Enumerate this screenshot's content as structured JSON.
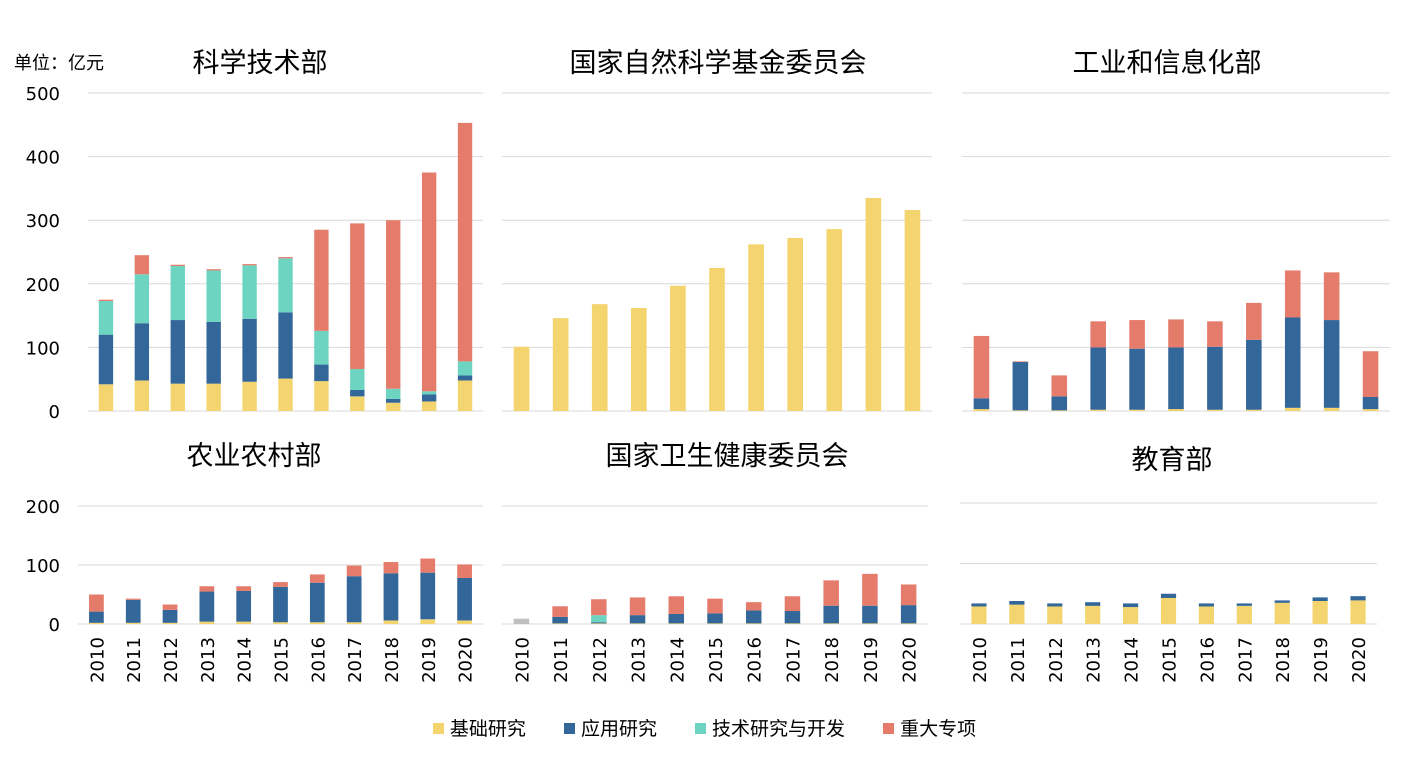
{
  "unit_label": "单位：亿元",
  "colors": {
    "basic": "#F3D46E",
    "applied": "#336699",
    "tech_dev": "#6CD4C0",
    "major": "#E57B6B",
    "gray": "#BFBFBF",
    "grid": "#D9D9D9"
  },
  "legend": [
    {
      "name": "基础研究",
      "color": "#F3D46E"
    },
    {
      "name": "应用研究",
      "color": "#336699"
    },
    {
      "name": "技术研究与开发",
      "color": "#6CD4C0"
    },
    {
      "name": "重大专项",
      "color": "#E57B6B"
    }
  ],
  "chart_data": [
    {
      "type": "bar",
      "stacked": true,
      "title": "科学技术部",
      "categories": [
        "2010",
        "2011",
        "2012",
        "2013",
        "2014",
        "2015",
        "2016",
        "2017",
        "2018",
        "2019",
        "2020"
      ],
      "ylim": [
        0,
        500
      ],
      "yticks": [
        0,
        100,
        200,
        300,
        400,
        500
      ],
      "series": [
        {
          "name": "基础研究",
          "values": [
            42,
            48,
            43,
            43,
            46,
            51,
            47,
            23,
            13,
            15,
            48
          ]
        },
        {
          "name": "应用研究",
          "values": [
            78,
            90,
            100,
            97,
            99,
            104,
            26,
            10,
            6,
            11,
            8
          ]
        },
        {
          "name": "技术研究与开发",
          "values": [
            53,
            77,
            85,
            81,
            84,
            85,
            53,
            33,
            16,
            5,
            22
          ]
        },
        {
          "name": "重大专项",
          "values": [
            2,
            30,
            2,
            2,
            2,
            2,
            159,
            229,
            265,
            344,
            375
          ]
        }
      ]
    },
    {
      "type": "bar",
      "stacked": true,
      "title": "国家自然科学基金委员会",
      "categories": [
        "2010",
        "2011",
        "2012",
        "2013",
        "2014",
        "2015",
        "2016",
        "2017",
        "2018",
        "2019",
        "2020"
      ],
      "ylim": [
        0,
        500
      ],
      "yticks": [
        0,
        100,
        200,
        300,
        400,
        500
      ],
      "series": [
        {
          "name": "基础研究",
          "values": [
            101,
            146,
            168,
            162,
            197,
            225,
            262,
            272,
            286,
            335,
            316
          ]
        }
      ]
    },
    {
      "type": "bar",
      "stacked": true,
      "title": "工业和信息化部",
      "categories": [
        "2010",
        "2011",
        "2012",
        "2013",
        "2014",
        "2015",
        "2016",
        "2017",
        "2018",
        "2019",
        "2020"
      ],
      "ylim": [
        0,
        500
      ],
      "yticks": [
        0,
        100,
        200,
        300,
        400,
        500
      ],
      "series": [
        {
          "name": "基础研究",
          "values": [
            3,
            1,
            1,
            2,
            2,
            3,
            2,
            2,
            5,
            5,
            3
          ]
        },
        {
          "name": "应用研究",
          "values": [
            17,
            76,
            22,
            98,
            96,
            97,
            99,
            110,
            142,
            138,
            19
          ]
        },
        {
          "name": "重大专项",
          "values": [
            98,
            1,
            33,
            41,
            45,
            44,
            40,
            58,
            74,
            75,
            72
          ]
        }
      ]
    },
    {
      "type": "bar",
      "stacked": true,
      "title": "农业农村部",
      "categories": [
        "2010",
        "2011",
        "2012",
        "2013",
        "2014",
        "2015",
        "2016",
        "2017",
        "2018",
        "2019",
        "2020"
      ],
      "ylim": [
        0,
        200
      ],
      "yticks": [
        0,
        100,
        200
      ],
      "series": [
        {
          "name": "基础研究",
          "values": [
            2,
            2,
            2,
            4,
            4,
            3,
            3,
            3,
            6,
            8,
            6
          ]
        },
        {
          "name": "应用研究",
          "values": [
            19,
            39,
            22,
            51,
            52,
            60,
            67,
            78,
            80,
            79,
            72
          ]
        },
        {
          "name": "重大专项",
          "values": [
            29,
            2,
            9,
            9,
            8,
            8,
            14,
            18,
            19,
            24,
            23
          ]
        }
      ]
    },
    {
      "type": "bar",
      "stacked": true,
      "title": "国家卫生健康委员会",
      "categories": [
        "2010",
        "2011",
        "2012",
        "2013",
        "2014",
        "2015",
        "2016",
        "2017",
        "2018",
        "2019",
        "2020"
      ],
      "ylim": [
        0,
        200
      ],
      "yticks": [
        0,
        100,
        200
      ],
      "series": [
        {
          "name": "基础研究",
          "values": [
            0,
            1,
            1,
            1,
            1,
            1,
            1,
            1,
            1,
            1,
            1
          ]
        },
        {
          "name": "应用研究",
          "values": [
            0,
            11,
            2,
            14,
            16,
            17,
            22,
            21,
            30,
            30,
            31
          ]
        },
        {
          "name": "技术研究与开发",
          "values": [
            0,
            0,
            12,
            0,
            0,
            0,
            0,
            0,
            0,
            0,
            0
          ]
        },
        {
          "name": "重大专项",
          "values": [
            0,
            18,
            27,
            30,
            30,
            25,
            14,
            25,
            43,
            54,
            35
          ]
        },
        {
          "name": "",
          "color": "gray",
          "values": [
            9,
            0,
            0,
            0,
            0,
            0,
            0,
            0,
            0,
            0,
            0
          ]
        }
      ]
    },
    {
      "type": "bar",
      "stacked": true,
      "title": "教育部",
      "categories": [
        "2010",
        "2011",
        "2012",
        "2013",
        "2014",
        "2015",
        "2016",
        "2017",
        "2018",
        "2019",
        "2020"
      ],
      "ylim": [
        0,
        200
      ],
      "yticks": [
        0,
        100,
        200
      ],
      "series": [
        {
          "name": "基础研究",
          "values": [
            29,
            32,
            29,
            30,
            28,
            43,
            29,
            30,
            35,
            38,
            39
          ]
        },
        {
          "name": "应用研究",
          "values": [
            5,
            6,
            5,
            6,
            6,
            7,
            5,
            4,
            4,
            6,
            7
          ]
        }
      ]
    }
  ]
}
